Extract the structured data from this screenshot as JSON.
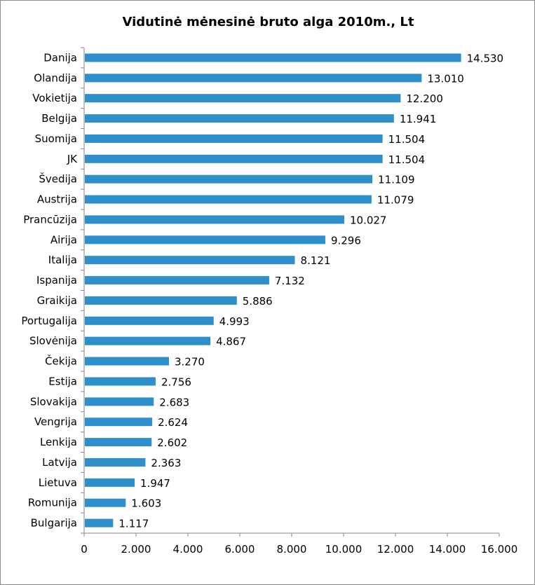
{
  "chart_data": {
    "type": "bar",
    "orientation": "horizontal",
    "title": "Vidutinė mėnesinė bruto alga 2010m., Lt",
    "categories": [
      "Danija",
      "Olandija",
      "Vokietija",
      "Belgija",
      "Suomija",
      "JK",
      "Švedija",
      "Austrija",
      "Prancūzija",
      "Airija",
      "Italija",
      "Ispanija",
      "Graikija",
      "Portugalija",
      "Slovėnija",
      "Čekija",
      "Estija",
      "Slovakija",
      "Vengrija",
      "Lenkija",
      "Latvija",
      "Lietuva",
      "Romunija",
      "Bulgarija"
    ],
    "values": [
      14530,
      13010,
      12200,
      11941,
      11504,
      11504,
      11109,
      11079,
      10027,
      9296,
      8121,
      7132,
      5886,
      4993,
      4867,
      3270,
      2756,
      2683,
      2624,
      2602,
      2363,
      1947,
      1603,
      1117
    ],
    "value_labels": [
      "14.530",
      "13.010",
      "12.200",
      "11.941",
      "11.504",
      "11.504",
      "11.109",
      "11.079",
      "10.027",
      "9.296",
      "8.121",
      "7.132",
      "5.886",
      "4.993",
      "4.867",
      "3.270",
      "2.756",
      "2.683",
      "2.624",
      "2.602",
      "2.363",
      "1.947",
      "1.603",
      "1.117"
    ],
    "xlim": [
      0,
      16000
    ],
    "xticks": [
      0,
      2000,
      4000,
      6000,
      8000,
      10000,
      12000,
      14000,
      16000
    ],
    "xtick_labels": [
      "0",
      "2.000",
      "4.000",
      "6.000",
      "8.000",
      "10.000",
      "12.000",
      "14.000",
      "16.000"
    ],
    "grid": false,
    "legend": "none",
    "bar_color": "#2e8fca",
    "xlabel": "",
    "ylabel": ""
  }
}
